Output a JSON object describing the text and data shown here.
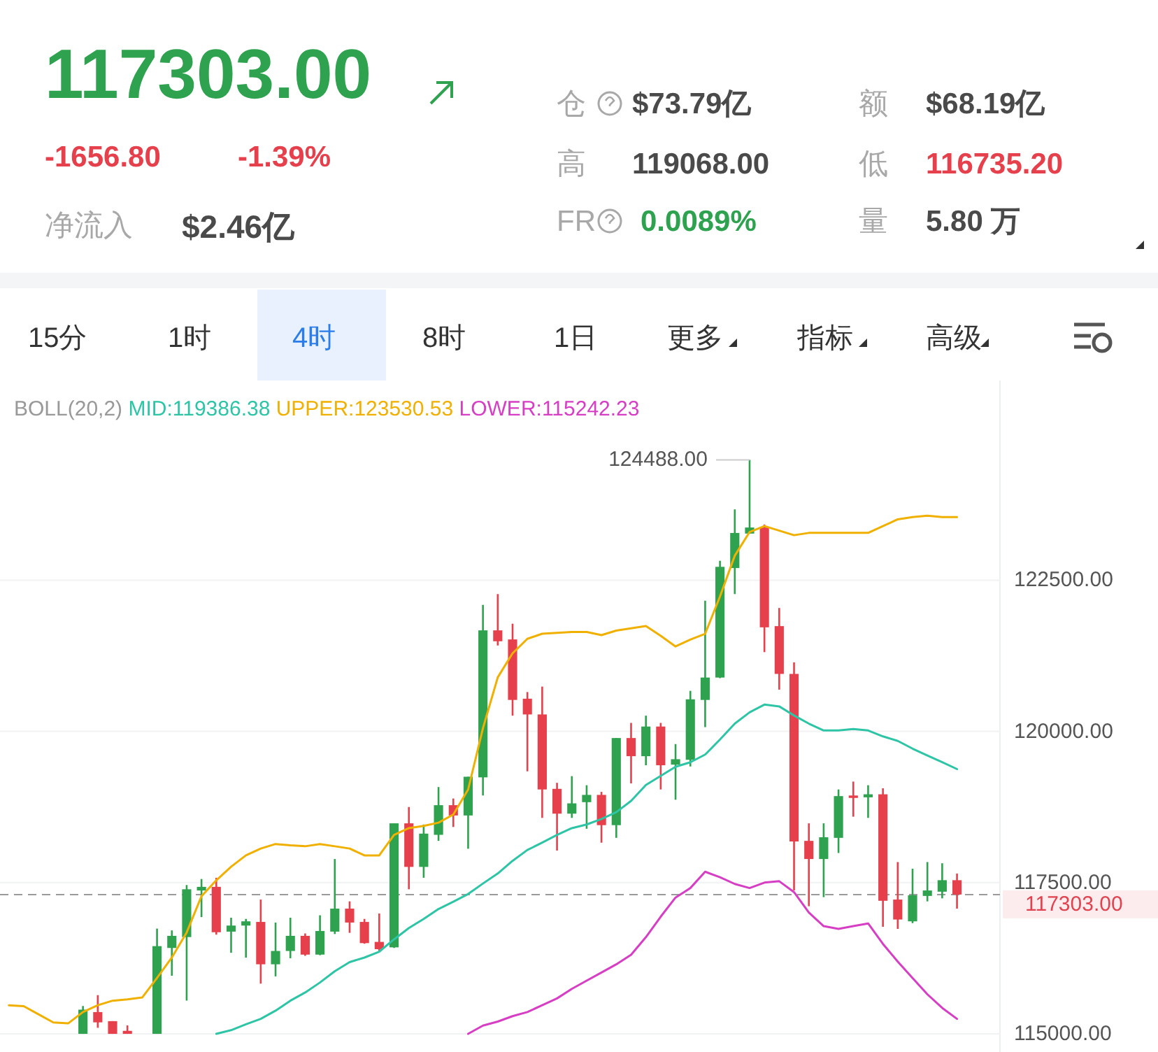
{
  "chart_data": [
    {
      "type": "other",
      "annotations": [
        "117303.00",
        "-1656.80",
        "-1.39%",
        "净流入",
        "$2.46亿",
        "仓",
        "$73.79亿",
        "高",
        "119068.00",
        "FR",
        "0.0089%",
        "额",
        "$68.19亿",
        "低",
        "116735.20",
        "量",
        "5.80 万",
        "15分",
        "1时",
        "4时",
        "8时",
        "1日",
        "更多",
        "指标",
        "高级"
      ]
    },
    {
      "type": "candlestick",
      "legend_title": "BOLL(20,2)",
      "legend": "top",
      "grid": "y",
      "categories": [
        null,
        null,
        null,
        null,
        null,
        null,
        null,
        null,
        null,
        null,
        null,
        null,
        null,
        null,
        null,
        null,
        null,
        null,
        null,
        null,
        null,
        null,
        null,
        null,
        null,
        null,
        null,
        null,
        null,
        null,
        null,
        null,
        null,
        null,
        null,
        null,
        null,
        null,
        null,
        null,
        null,
        null,
        null,
        null,
        null,
        null,
        null,
        null,
        null,
        null,
        null,
        null,
        null,
        null,
        null,
        null,
        null,
        null,
        null,
        null,
        null,
        null,
        null,
        null,
        null
      ],
      "ylim": [
        114700,
        125800
      ],
      "yticks": [
        {
          "value": 115000,
          "label": "115000.00"
        },
        {
          "value": 117500,
          "label": "117500.00"
        },
        {
          "value": 120000,
          "label": "120000.00"
        },
        {
          "value": 122500,
          "label": "122500.00"
        }
      ],
      "ohlc": [
        null,
        null,
        null,
        null,
        null,
        [
          115000,
          115460,
          115000,
          115400
        ],
        [
          115360,
          115640,
          115100,
          115190
        ],
        [
          115210,
          115210,
          115000,
          115000
        ],
        [
          115050,
          115140,
          115000,
          115000
        ],
        null,
        [
          115000,
          116740,
          115000,
          116450
        ],
        [
          116420,
          116710,
          115960,
          116620
        ],
        [
          116600,
          117460,
          115550,
          117390
        ],
        [
          117370,
          117560,
          116930,
          117430
        ],
        [
          117430,
          117580,
          116640,
          116680
        ],
        [
          116690,
          116920,
          116340,
          116790
        ],
        [
          116790,
          116900,
          116260,
          116860
        ],
        [
          116850,
          117220,
          115830,
          116150
        ],
        [
          116150,
          116840,
          115950,
          116370
        ],
        [
          116370,
          116920,
          116250,
          116620
        ],
        [
          116620,
          116660,
          116290,
          116310
        ],
        [
          116310,
          116960,
          116300,
          116700
        ],
        [
          116690,
          117890,
          116650,
          117070
        ],
        [
          117070,
          117190,
          116670,
          116840
        ],
        [
          116850,
          116900,
          116490,
          116500
        ],
        [
          116520,
          116990,
          116370,
          116400
        ],
        [
          116430,
          118480,
          116420,
          118480
        ],
        [
          118480,
          118750,
          117390,
          117760
        ],
        [
          117760,
          118460,
          117580,
          118310
        ],
        [
          118290,
          119080,
          118190,
          118780
        ],
        [
          118780,
          118890,
          118420,
          118610
        ],
        [
          118610,
          119250,
          118060,
          119250
        ],
        [
          119240,
          122090,
          118940,
          121670
        ],
        [
          121670,
          122270,
          121420,
          121490
        ],
        [
          121520,
          121780,
          120260,
          120520
        ],
        [
          120540,
          120650,
          119340,
          120280
        ],
        [
          120280,
          120740,
          118570,
          119040
        ],
        [
          119050,
          119150,
          118030,
          118640
        ],
        [
          118640,
          119260,
          118570,
          118810
        ],
        [
          118830,
          119110,
          118390,
          118950
        ],
        [
          118950,
          119000,
          118160,
          118450
        ],
        [
          118450,
          119890,
          118240,
          119890
        ],
        [
          119890,
          120140,
          119140,
          119590
        ],
        [
          119590,
          120260,
          119440,
          120080
        ],
        [
          120080,
          120140,
          119040,
          119440
        ],
        [
          119450,
          119790,
          118870,
          119540
        ],
        [
          119530,
          120670,
          119420,
          120530
        ],
        [
          120520,
          122160,
          120070,
          120890
        ],
        [
          120890,
          122820,
          120880,
          122720
        ],
        [
          122700,
          123670,
          122270,
          123280
        ],
        [
          123270,
          124488,
          123270,
          123370
        ],
        [
          123370,
          123420,
          121310,
          121720
        ],
        [
          121740,
          122040,
          120690,
          120950
        ],
        [
          120950,
          121140,
          117370,
          118180
        ],
        [
          118190,
          118480,
          117110,
          117890
        ],
        [
          117890,
          118480,
          117260,
          118250
        ],
        [
          118240,
          119040,
          117990,
          118930
        ],
        [
          118940,
          119170,
          118590,
          118900
        ],
        [
          118910,
          119110,
          118570,
          118960
        ],
        [
          118960,
          119060,
          116770,
          117200
        ],
        [
          117220,
          117840,
          116735,
          116890
        ],
        [
          116860,
          117730,
          116830,
          117290
        ],
        [
          117280,
          117840,
          117190,
          117370
        ],
        [
          117350,
          117820,
          117240,
          117540
        ],
        [
          117540,
          117650,
          117070,
          117303
        ]
      ],
      "series": [
        {
          "name": "MID:119386.38",
          "type": "line",
          "color": "#2ec4a6",
          "values": [
            null,
            null,
            null,
            null,
            null,
            null,
            null,
            null,
            null,
            null,
            null,
            null,
            null,
            null,
            115000,
            115061,
            115158,
            115248,
            115383,
            115548,
            115684,
            115849,
            116036,
            116186,
            116261,
            116359,
            116562,
            116749,
            116899,
            117064,
            117185,
            117312,
            117485,
            117650,
            117860,
            118040,
            118161,
            118288,
            118401,
            118461,
            118551,
            118664,
            118851,
            119114,
            119264,
            119415,
            119490,
            119617,
            119865,
            120128,
            120315,
            120443,
            120413,
            120263,
            120128,
            120015,
            120015,
            120038,
            120015,
            119917,
            119842,
            119715,
            119602,
            119490,
            119377
          ]
        },
        {
          "name": "UPPER:123530.53",
          "type": "line",
          "color": "#f0b000",
          "values": [
            115473,
            115458,
            115323,
            115188,
            115173,
            115361,
            115473,
            115548,
            115571,
            115601,
            115924,
            116262,
            116675,
            117275,
            117538,
            117763,
            117951,
            118063,
            118138,
            118116,
            118101,
            118138,
            118101,
            118063,
            117950,
            117950,
            118288,
            118401,
            118438,
            118491,
            118626,
            119039,
            120052,
            120893,
            121291,
            121531,
            121614,
            121629,
            121644,
            121644,
            121591,
            121666,
            121704,
            121741,
            121580,
            121404,
            121517,
            121614,
            122230,
            122905,
            123296,
            123393,
            123318,
            123243,
            123281,
            123281,
            123281,
            123281,
            123281,
            123393,
            123506,
            123543,
            123566,
            123543,
            123543
          ]
        },
        {
          "name": "LOWER:115242.23",
          "type": "line",
          "color": "#d63fc4",
          "values": [
            null,
            null,
            null,
            null,
            null,
            null,
            null,
            null,
            null,
            null,
            null,
            null,
            null,
            null,
            null,
            null,
            null,
            null,
            null,
            null,
            null,
            null,
            null,
            null,
            null,
            null,
            null,
            null,
            null,
            null,
            null,
            115000,
            115136,
            115203,
            115293,
            115361,
            115473,
            115586,
            115744,
            115879,
            116014,
            116149,
            116307,
            116599,
            116937,
            117253,
            117410,
            117680,
            117590,
            117478,
            117410,
            117500,
            117523,
            117343,
            117005,
            116780,
            116735,
            116780,
            116825,
            116487,
            116194,
            115924,
            115654,
            115429,
            115248
          ]
        }
      ],
      "ref_lines": [
        {
          "axis": "y",
          "value": 117303,
          "label": "117303.00",
          "color": "#9a9a9a",
          "line_style": "dashed"
        }
      ],
      "annotations": [
        "124488.00"
      ]
    }
  ]
}
